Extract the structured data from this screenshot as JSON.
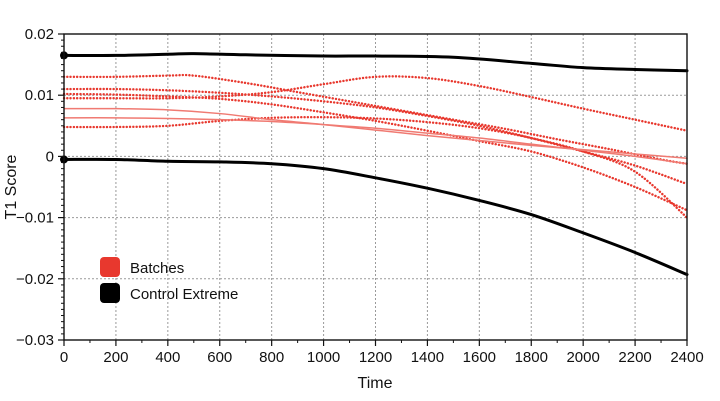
{
  "chart_data": {
    "type": "line",
    "title": "",
    "xlabel": "Time",
    "ylabel": "T1 Score",
    "xlim": [
      0,
      2400
    ],
    "ylim": [
      -0.03,
      0.02
    ],
    "x_ticks": [
      0,
      200,
      400,
      600,
      800,
      1000,
      1200,
      1400,
      1600,
      1800,
      2000,
      2200,
      2400
    ],
    "y_ticks": [
      0.02,
      0.01,
      0,
      -0.01,
      -0.02,
      -0.03
    ],
    "y_tick_labels": [
      "0.02",
      "0.01",
      "0",
      "−0.01",
      "−0.02",
      "−0.03"
    ],
    "grid": true,
    "legend": {
      "position": "bottom-left",
      "entries": [
        {
          "label": "Batches",
          "color": "#e8382e"
        },
        {
          "label": "Control Extreme",
          "color": "#000000"
        }
      ]
    },
    "series": [
      {
        "group": "Control Extreme",
        "color": "#000000",
        "style": "solid",
        "x": [
          0,
          200,
          400,
          500,
          700,
          1000,
          1200,
          1500,
          1800,
          2000,
          2200,
          2400
        ],
        "y": [
          0.0165,
          0.0165,
          0.0167,
          0.0168,
          0.0166,
          0.0164,
          0.0164,
          0.0162,
          0.0152,
          0.0145,
          0.0142,
          0.014
        ]
      },
      {
        "group": "Control Extreme",
        "color": "#000000",
        "style": "solid",
        "x": [
          0,
          200,
          400,
          600,
          800,
          1000,
          1200,
          1400,
          1600,
          1800,
          2000,
          2200,
          2400
        ],
        "y": [
          -0.0005,
          -0.0005,
          -0.0008,
          -0.0009,
          -0.0012,
          -0.002,
          -0.0035,
          -0.0052,
          -0.0072,
          -0.0095,
          -0.0125,
          -0.0157,
          -0.0193
        ]
      },
      {
        "group": "Batches",
        "color": "#e8382e",
        "style": "dotted",
        "x": [
          0,
          200,
          400,
          500,
          700,
          900,
          1100,
          1300,
          1500,
          1700,
          1900,
          2100,
          2300,
          2400
        ],
        "y": [
          0.013,
          0.013,
          0.0132,
          0.0132,
          0.012,
          0.0105,
          0.009,
          0.0075,
          0.006,
          0.0045,
          0.0028,
          0.0012,
          -0.0005,
          -0.0012
        ]
      },
      {
        "group": "Batches",
        "color": "#e8382e",
        "style": "dotted",
        "x": [
          0,
          200,
          400,
          600,
          800,
          1000,
          1200,
          1400,
          1600,
          1800,
          2000,
          2200,
          2400
        ],
        "y": [
          0.011,
          0.011,
          0.0108,
          0.0104,
          0.0098,
          0.009,
          0.008,
          0.0066,
          0.005,
          0.003,
          0.0008,
          -0.0015,
          -0.0045
        ]
      },
      {
        "group": "Batches",
        "color": "#e8382e",
        "style": "dotted",
        "x": [
          0,
          200,
          400,
          600,
          800,
          1000,
          1200,
          1400,
          1600,
          1800,
          2000,
          2200,
          2400
        ],
        "y": [
          0.0095,
          0.0095,
          0.0095,
          0.0098,
          0.0105,
          0.0118,
          0.013,
          0.0128,
          0.0115,
          0.0097,
          0.0078,
          0.006,
          0.0042
        ]
      },
      {
        "group": "Batches",
        "color": "#e8382e",
        "style": "dotted",
        "x": [
          0,
          200,
          400,
          600,
          800,
          1000,
          1200,
          1400,
          1600,
          1800,
          2000,
          2200,
          2400
        ],
        "y": [
          0.0048,
          0.0048,
          0.005,
          0.0058,
          0.0063,
          0.0064,
          0.0062,
          0.0056,
          0.0046,
          0.003,
          0.0008,
          -0.0025,
          -0.01
        ]
      },
      {
        "group": "Batches",
        "color": "#e8382e",
        "style": "dotted",
        "x": [
          0,
          200,
          400,
          600,
          800,
          1000,
          1200,
          1400,
          1600,
          1800,
          2000,
          2200,
          2400
        ],
        "y": [
          0.0102,
          0.0101,
          0.0098,
          0.0094,
          0.0085,
          0.0072,
          0.0058,
          0.0042,
          0.0025,
          0.0008,
          -0.0018,
          -0.005,
          -0.0088
        ]
      },
      {
        "group": "Batches",
        "color": "#f07a72",
        "style": "solid",
        "x": [
          0,
          200,
          400,
          600,
          800,
          1000,
          1200,
          1400,
          1600,
          1800,
          2000,
          2200,
          2400
        ],
        "y": [
          0.0078,
          0.0078,
          0.0076,
          0.007,
          0.006,
          0.0052,
          0.0043,
          0.0034,
          0.0026,
          0.0018,
          0.0011,
          0.0004,
          -0.0003
        ]
      },
      {
        "group": "Batches",
        "color": "#f07a72",
        "style": "solid",
        "x": [
          0,
          200,
          400,
          600,
          800,
          1000,
          1200,
          1400,
          1600,
          1800,
          2000,
          2200,
          2400
        ],
        "y": [
          0.0063,
          0.0063,
          0.0062,
          0.006,
          0.0057,
          0.0052,
          0.0046,
          0.0038,
          0.003,
          0.002,
          0.001,
          0.0,
          -0.0012
        ]
      }
    ]
  }
}
